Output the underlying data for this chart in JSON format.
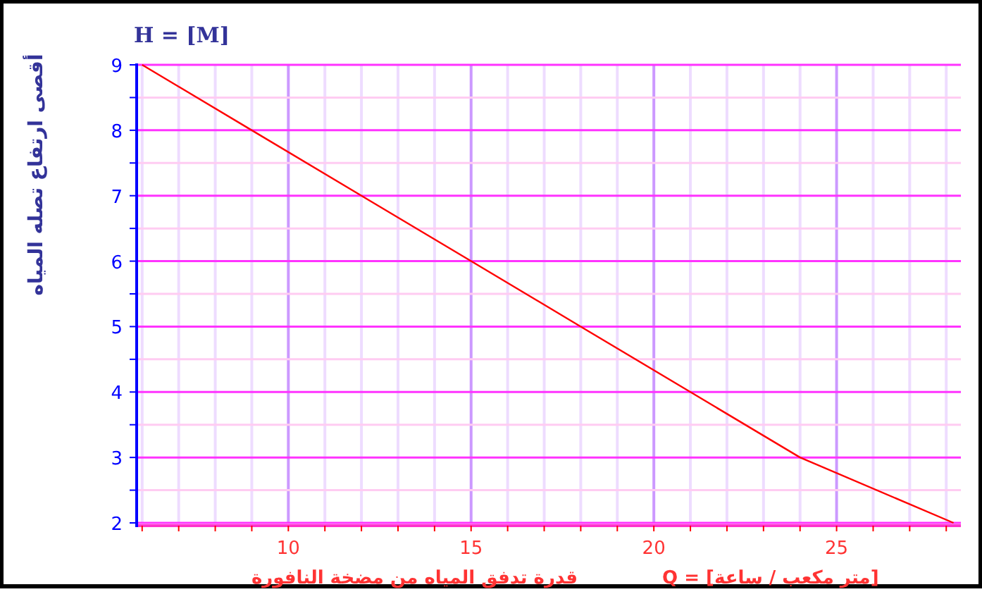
{
  "chart_data": {
    "type": "line",
    "ylabel": "أقصى ارتفاع تصله المياه",
    "xlabel": "قدرة تدفق المياه من مضخة النافورة",
    "annotations": [
      "H = [M]",
      "Q = [متر مكعب / ساعة]"
    ],
    "x": [
      6,
      9,
      12,
      15,
      18,
      21,
      24,
      28.2
    ],
    "series": [
      {
        "color": "#ff0000",
        "values": [
          9,
          8,
          7,
          6,
          5,
          4,
          3,
          2
        ]
      }
    ],
    "xlim": [
      5.85,
      28.4
    ],
    "xticks": [
      {
        "value": 6,
        "label": null
      },
      {
        "value": 7,
        "label": null
      },
      {
        "value": 8,
        "label": null
      },
      {
        "value": 9,
        "label": null
      },
      10,
      {
        "value": 11,
        "label": null
      },
      {
        "value": 12,
        "label": null
      },
      {
        "value": 13,
        "label": null
      },
      {
        "value": 14,
        "label": null
      },
      15,
      {
        "value": 16,
        "label": null
      },
      {
        "value": 17,
        "label": null
      },
      {
        "value": 18,
        "label": null
      },
      {
        "value": 19,
        "label": null
      },
      20,
      {
        "value": 21,
        "label": null
      },
      {
        "value": 22,
        "label": null
      },
      {
        "value": 23,
        "label": null
      },
      {
        "value": 24,
        "label": null
      },
      25,
      {
        "value": 26,
        "label": null
      },
      {
        "value": 27,
        "label": null
      },
      {
        "value": 28,
        "label": null
      }
    ],
    "ylim": [
      2,
      9
    ],
    "yticks": [
      2,
      {
        "value": 2.5,
        "label": null
      },
      3,
      {
        "value": 3.5,
        "label": null
      },
      4,
      {
        "value": 4.5,
        "label": null
      },
      5,
      {
        "value": 5.5,
        "label": null
      },
      6,
      {
        "value": 6.5,
        "label": null
      },
      7,
      {
        "value": 7.5,
        "label": null
      },
      8,
      {
        "value": 8.5,
        "label": null
      },
      9
    ],
    "grid": true,
    "marker": "none",
    "line_style": "solid"
  }
}
